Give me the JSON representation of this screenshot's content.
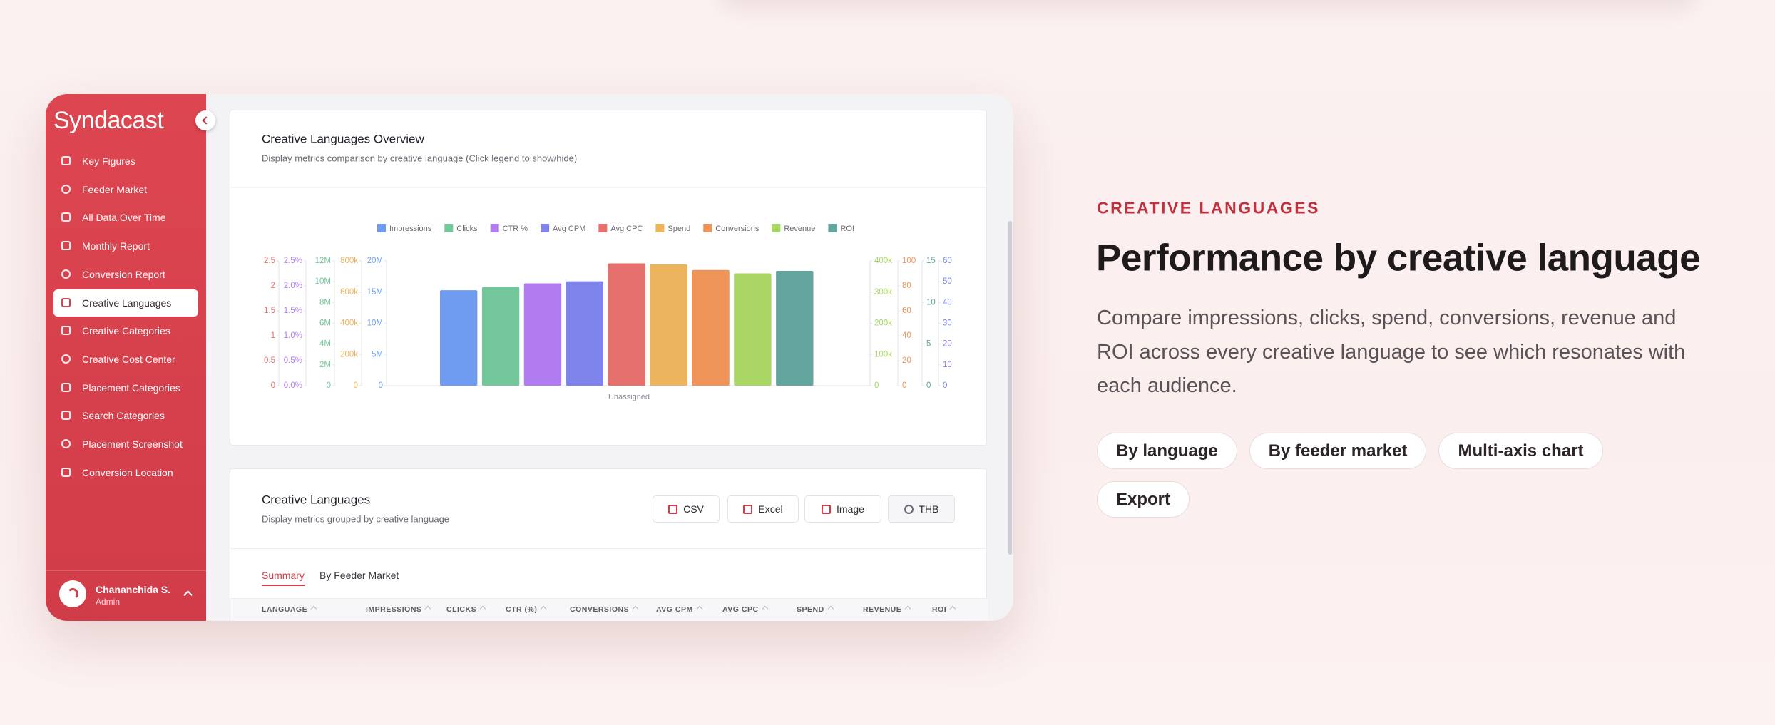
{
  "sidebar": {
    "logo": "Syndacast",
    "active_index": 5,
    "nav": [
      "Key Figures",
      "Feeder Market",
      "All Data Over Time",
      "Monthly Report",
      "Conversion Report",
      "Creative Languages",
      "Creative Categories",
      "Creative Cost Center",
      "Placement Categories",
      "Search Categories",
      "Placement Screenshot",
      "Conversion Location"
    ],
    "user": {
      "name": "Chananchida S.",
      "role": "Admin"
    }
  },
  "chart_data": {
    "type": "bar",
    "title": "Creative Languages Overview",
    "subtitle": "Display metrics comparison by creative language (Click legend to show/hide)",
    "categories": [
      "Unassigned"
    ],
    "series": [
      {
        "name": "Impressions",
        "color": "#6f9cf0",
        "values": [
          15300000
        ],
        "ylim": [
          0,
          20000000
        ],
        "yticks": [
          0,
          {
            "value": 5000000,
            "label": "5M"
          },
          {
            "value": 10000000,
            "label": "10M"
          },
          {
            "value": 15000000,
            "label": "15M"
          },
          {
            "value": 20000000,
            "label": "20M"
          }
        ]
      },
      {
        "name": "Clicks",
        "color": "#74c79b",
        "values": [
          9500000
        ],
        "ylim": [
          0,
          12000000
        ],
        "yticks": [
          0,
          {
            "value": 2000000,
            "label": "2M"
          },
          {
            "value": 4000000,
            "label": "4M"
          },
          {
            "value": 6000000,
            "label": "6M"
          },
          {
            "value": 8000000,
            "label": "8M"
          },
          {
            "value": 10000000,
            "label": "10M"
          },
          {
            "value": 12000000,
            "label": "12M"
          }
        ]
      },
      {
        "name": "CTR %",
        "color": "#b07cf0",
        "values": [
          2.05
        ],
        "ylim": [
          0,
          2.5
        ],
        "yticks": [
          {
            "value": 0,
            "label": "0.0%"
          },
          {
            "value": 0.5,
            "label": "0.5%"
          },
          {
            "value": 1,
            "label": "1.0%"
          },
          {
            "value": 1.5,
            "label": "1.5%"
          },
          {
            "value": 2,
            "label": "2.0%"
          },
          {
            "value": 2.5,
            "label": "2.5%"
          }
        ]
      },
      {
        "name": "Avg CPM",
        "color": "#7f84ea",
        "values": [
          50.2
        ],
        "axis": "y2",
        "ylim": [
          0,
          60
        ],
        "yticks": [
          0,
          10,
          20,
          30,
          40,
          50,
          60
        ]
      },
      {
        "name": "Avg CPC",
        "color": "#e5706d",
        "values": [
          2.45
        ],
        "ylim": [
          0,
          2.5
        ],
        "yticks": [
          0,
          0.5,
          1,
          1.5,
          2,
          2.5
        ]
      },
      {
        "name": "Spend",
        "color": "#ecb55d",
        "values": [
          778000
        ],
        "ylim": [
          0,
          800000
        ],
        "yticks": [
          0,
          {
            "value": 200000,
            "label": "200k"
          },
          {
            "value": 400000,
            "label": "400k"
          },
          {
            "value": 600000,
            "label": "600k"
          },
          {
            "value": 800000,
            "label": "800k"
          }
        ]
      },
      {
        "name": "Conversions",
        "color": "#ee9458",
        "values": [
          92.7
        ],
        "axis": "y2",
        "ylim": [
          0,
          100
        ],
        "yticks": [
          0,
          20,
          40,
          60,
          80,
          100
        ]
      },
      {
        "name": "Revenue",
        "color": "#a9d664",
        "values": [
          360000
        ],
        "axis": "y2",
        "ylim": [
          0,
          400000
        ],
        "yticks": [
          0,
          {
            "value": 100000,
            "label": "100k"
          },
          {
            "value": 200000,
            "label": "200k"
          },
          {
            "value": 300000,
            "label": "300k"
          },
          {
            "value": 400000,
            "label": "400k"
          }
        ]
      },
      {
        "name": "ROI",
        "color": "#63a69e",
        "values": [
          13.8
        ],
        "axis": "y2",
        "ylim": [
          0,
          15
        ],
        "yticks": [
          0,
          5,
          10,
          15
        ]
      }
    ]
  },
  "table": {
    "title": "Creative Languages",
    "subtitle": "Display metrics grouped by creative language",
    "buttons": [
      "CSV",
      "Excel",
      "Image",
      "THB"
    ],
    "tabs": [
      "Summary",
      "By Feeder Market"
    ],
    "active_tab": 0,
    "columns": [
      "LANGUAGE",
      "IMPRESSIONS",
      "CLICKS",
      "CTR (%)",
      "CONVERSIONS",
      "AVG CPM",
      "AVG CPC",
      "SPEND",
      "REVENUE",
      "ROI"
    ]
  },
  "hero": {
    "eyebrow": "CREATIVE LANGUAGES",
    "title": "Performance by creative language",
    "body": "Compare impressions, clicks, spend, conversions, revenue and ROI across every creative language to see which resonates with each audience.",
    "tags": [
      "By language",
      "By feeder market",
      "Multi-axis chart",
      "Export"
    ]
  }
}
